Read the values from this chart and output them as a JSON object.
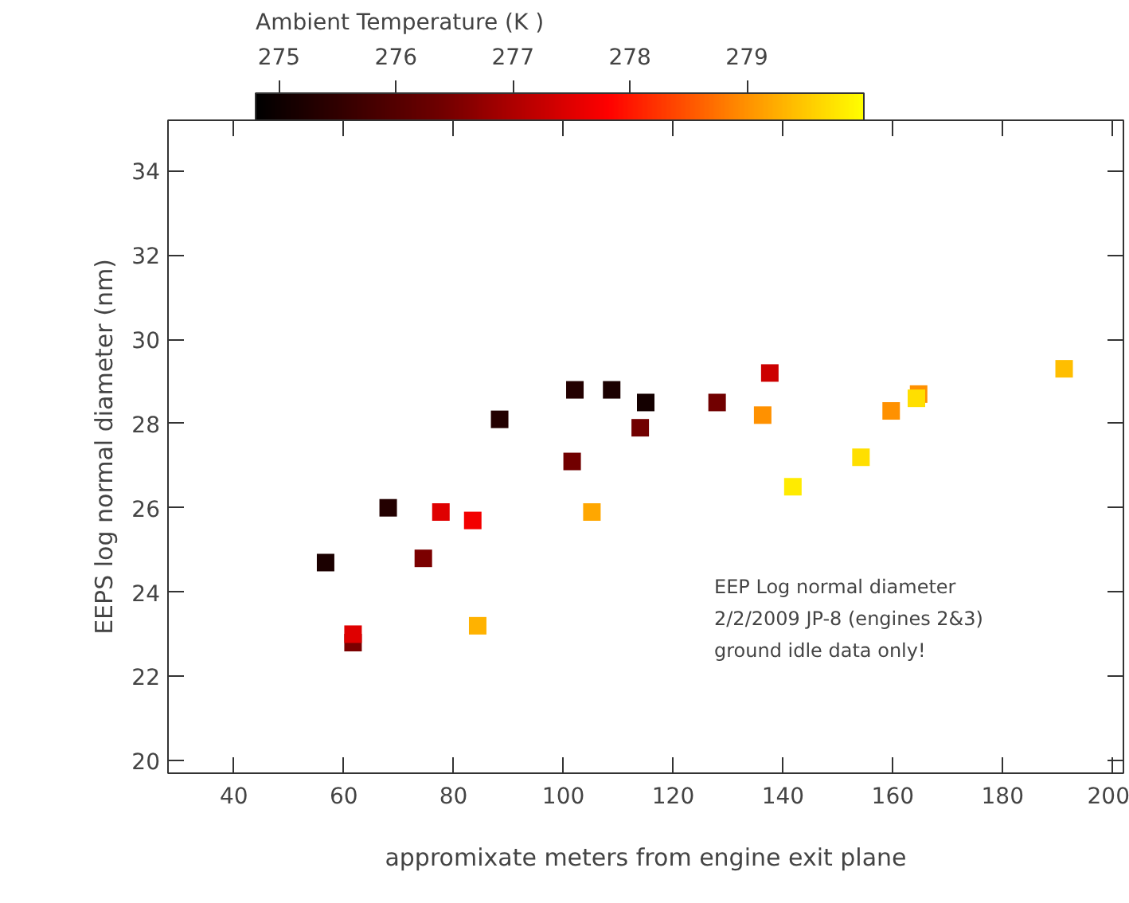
{
  "chart_data": {
    "type": "scatter",
    "xlabel": "appromixate meters from engine exit plane",
    "ylabel": "EEPS log normal diameter (nm)",
    "clabel": "Ambient Temperature (K )",
    "x": [
      56.7,
      68.1,
      61.7,
      61.7,
      74.5,
      77.7,
      83.5,
      84.4,
      88.4,
      101.6,
      102.1,
      105.2,
      108.8,
      115.0,
      114.0,
      128.0,
      137.6,
      136.3,
      141.8,
      154.2,
      159.7,
      164.7,
      164.3,
      191.2
    ],
    "values": [
      24.7,
      26.0,
      22.8,
      23.0,
      24.8,
      25.9,
      25.7,
      23.2,
      28.1,
      27.1,
      28.8,
      25.9,
      28.8,
      28.5,
      27.9,
      28.5,
      29.2,
      28.2,
      26.5,
      27.2,
      28.3,
      28.7,
      28.6,
      29.3
    ],
    "cvalues": [
      275.2,
      275.3,
      276.5,
      277.5,
      276.5,
      277.5,
      277.7,
      279.3,
      275.3,
      276.4,
      275.3,
      279.2,
      275.2,
      275.1,
      276.4,
      276.4,
      277.3,
      279.0,
      279.8,
      279.7,
      279.0,
      279.0,
      279.7,
      279.4
    ],
    "clim": [
      274.8,
      280.0
    ],
    "cticks": [
      275,
      276,
      277,
      278,
      279
    ],
    "xlim": [
      28,
      202
    ],
    "xticks": [
      40,
      60,
      80,
      100,
      120,
      140,
      160,
      180,
      200
    ],
    "ylim": [
      19.7,
      35.2
    ],
    "yticks": [
      20,
      22,
      24,
      26,
      28,
      30,
      32,
      34
    ],
    "marker": "square",
    "grid": false,
    "annotations": [
      "EEP Log normal diameter",
      "2/2/2009 JP-8 (engines 2&3)",
      "ground idle data only!"
    ]
  }
}
